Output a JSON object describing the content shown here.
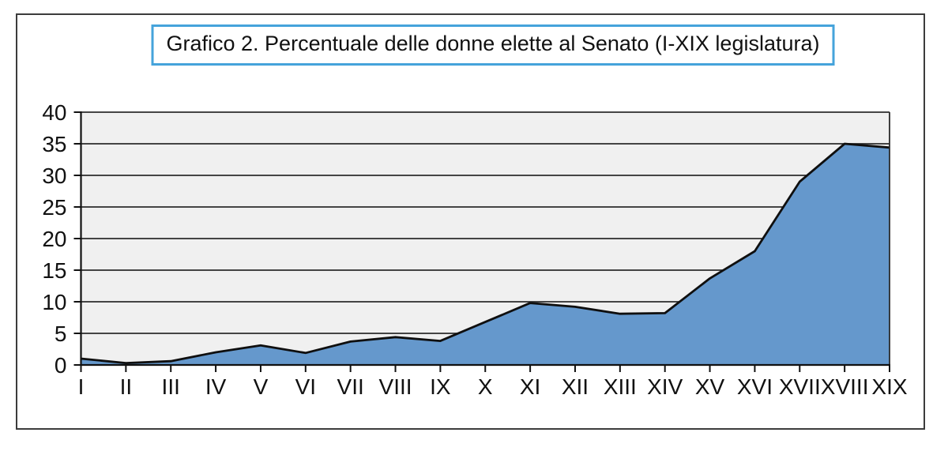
{
  "title": "Grafico 2. Percentuale delle donne elette al Senato (I-XIX legislatura)",
  "chart_data": {
    "type": "area",
    "title": "Grafico 2. Percentuale delle donne elette al Senato (I-XIX legislatura)",
    "categories": [
      "I",
      "II",
      "III",
      "IV",
      "V",
      "VI",
      "VII",
      "VIII",
      "IX",
      "X",
      "XI",
      "XII",
      "XIII",
      "XIV",
      "XV",
      "XVI",
      "XVII",
      "XVIII",
      "XIX"
    ],
    "values": [
      1,
      0.3,
      0.6,
      2,
      3.1,
      1.9,
      3.7,
      4.4,
      3.8,
      6.8,
      9.8,
      9.2,
      8.1,
      8.2,
      13.7,
      18,
      29,
      35,
      34.4
    ],
    "xlabel": "",
    "ylabel": "",
    "ylim": [
      0,
      40
    ],
    "yticks": [
      0,
      5,
      10,
      15,
      20,
      25,
      30,
      35,
      40
    ],
    "grid": "horizontal",
    "legend_position": "none",
    "colors": {
      "area_fill": "#6598CC",
      "series_line": "#0f0f0f",
      "plot_bg": "#F0F0F0",
      "gridline": "#2b2b2b",
      "axis": "#111111",
      "title_border": "#45a3db",
      "frame_border": "#3c3c3c",
      "label_color": "#111111"
    }
  }
}
